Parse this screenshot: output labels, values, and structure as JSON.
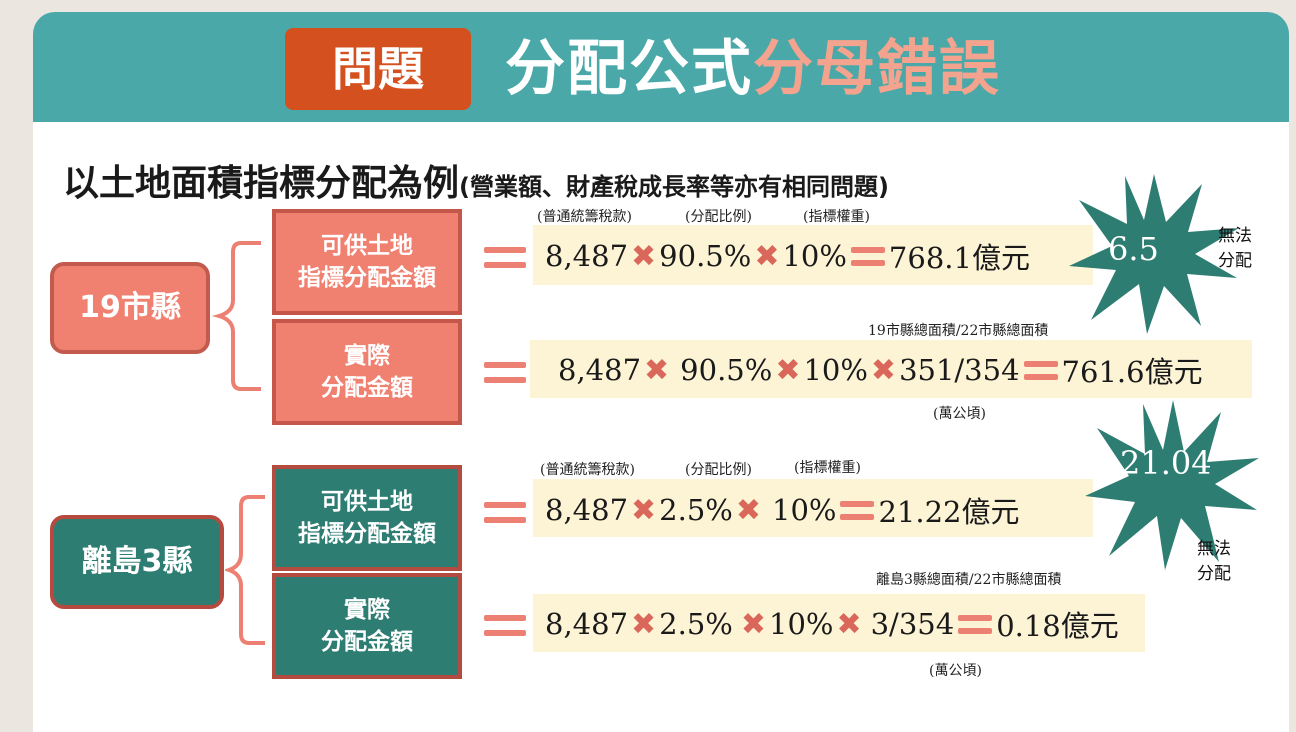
{
  "header": {
    "badge": "問題",
    "title_white": "分配公式",
    "title_pink": "分母錯誤"
  },
  "heading": {
    "main": "以土地面積指標分配為例",
    "sub": "(營業額、財產稅成長率等亦有相同問題)"
  },
  "colors": {
    "banner": "#4aa9a8",
    "badge": "#d4511f",
    "salmon": "#f08070",
    "teal": "#2e7d73",
    "cross": "#d9675a",
    "bar": "#fdf4d6"
  },
  "group1": {
    "label": "19市縣",
    "box1": {
      "line1": "可供土地",
      "line2": "指標分配金額"
    },
    "box2": {
      "line1": "實際",
      "line2": "分配金額"
    },
    "labels1": [
      "(普通統籌稅款)",
      "(分配比例)",
      "(指標權重)"
    ],
    "row1": [
      "8,487",
      "90.5%",
      "10%",
      "768.1億元"
    ],
    "row2": [
      "8,487",
      "90.5%",
      "10%",
      "351/354",
      "761.6億元"
    ],
    "ratio_label": "19市縣總面積/22市縣總面積",
    "unit_label": "(萬公頃)",
    "burst_value": "6.5",
    "note": [
      "無法",
      "分配"
    ]
  },
  "group2": {
    "label": "離島3縣",
    "box1": {
      "line1": "可供土地",
      "line2": "指標分配金額"
    },
    "box2": {
      "line1": "實際",
      "line2": "分配金額"
    },
    "labels1": [
      "(普通統籌稅款)",
      "(分配比例)",
      "(指標權重)"
    ],
    "row1": [
      "8,487",
      "2.5%",
      "10%",
      "21.22億元"
    ],
    "row2": [
      "8,487",
      "2.5%",
      "10%",
      "3/354",
      "0.18億元"
    ],
    "ratio_label": "離島3縣總面積/22市縣總面積",
    "unit_label": "(萬公頃)",
    "burst_value": "21.04",
    "note": [
      "無法",
      "分配"
    ]
  },
  "icons": {
    "multiply": "cross-icon",
    "equals": "equals-icon"
  }
}
